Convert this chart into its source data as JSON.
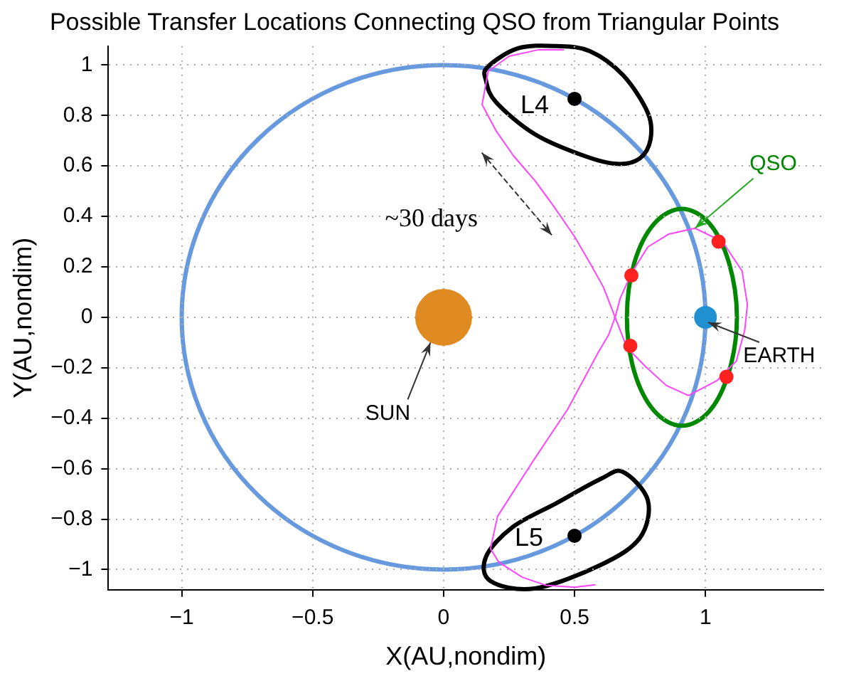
{
  "chart_data": {
    "type": "line",
    "title": "Possible Transfer Locations Connecting QSO from Triangular Points",
    "xlabel": "X(AU,nondim)",
    "ylabel": "Y(AU,nondim)",
    "xlim": [
      -1.28,
      1.45
    ],
    "ylim": [
      -1.08,
      1.075
    ],
    "xticks": [
      {
        "value": -1,
        "label": "−1"
      },
      {
        "value": -0.5,
        "label": "−0.5"
      },
      0,
      0.5,
      1
    ],
    "yticks": [
      {
        "value": -1,
        "label": "−1"
      },
      {
        "value": -0.8,
        "label": "−0.8"
      },
      {
        "value": -0.6,
        "label": "−0.6"
      },
      {
        "value": -0.4,
        "label": "−0.4"
      },
      {
        "value": -0.2,
        "label": "−0.2"
      },
      0,
      0.2,
      0.4,
      0.6,
      0.8,
      1
    ],
    "grid": true,
    "legend": false,
    "line_style": "solid",
    "series": [
      {
        "color": "#ff44ff",
        "x": [
          0.46,
          0.36,
          0.25,
          0.17,
          0.147,
          0.2,
          0.267,
          0.35,
          0.422,
          0.5,
          0.559,
          0.61,
          0.655,
          0.7,
          0.77,
          0.85,
          0.935,
          1.045,
          1.118,
          1.15,
          1.16,
          1.14,
          1.065,
          0.96,
          0.86,
          0.78,
          0.72,
          0.675,
          0.655,
          0.63,
          0.59,
          0.474,
          0.337,
          0.206,
          0.179,
          0.21,
          0.3,
          0.39,
          0.5,
          0.58
        ],
        "values": [
          1.06,
          1.06,
          1.035,
          0.975,
          0.843,
          0.74,
          0.64,
          0.54,
          0.438,
          0.32,
          0.215,
          0.12,
          0,
          -0.12,
          -0.194,
          -0.27,
          -0.31,
          -0.25,
          -0.173,
          -0.05,
          0.05,
          0.183,
          0.3,
          0.353,
          0.33,
          0.279,
          0.18,
          0.077,
          0,
          -0.07,
          -0.14,
          -0.364,
          -0.577,
          -0.789,
          -0.917,
          -0.97,
          -1.03,
          -1.062,
          -1.07,
          -1.06
        ]
      },
      {
        "type": "bubble",
        "x": [
          0,
          1
        ],
        "values": [
          0,
          0
        ],
        "sizes": [
          1,
          0.16
        ],
        "colors": [
          "#e08a22",
          "#2090d0"
        ]
      },
      {
        "type": "scatter",
        "marker": "circle",
        "color": "#ff2020",
        "x": [
          0.717,
          1.05,
          0.713,
          1.08
        ],
        "values": [
          0.166,
          0.3,
          -0.113,
          -0.236
        ]
      },
      {
        "type": "scatter",
        "marker": "circle",
        "color": "#000000",
        "x": [
          0.5,
          0.5
        ],
        "values": [
          0.866,
          -0.866
        ]
      }
    ],
    "annotations": [
      {
        "text": "~30 days",
        "x": 0.35,
        "y": 0.54
      },
      {
        "text": "QSO",
        "x": 0.96,
        "y": 0.353
      },
      {
        "text": "EARTH",
        "x": 1.01,
        "y": -0.02
      },
      {
        "text": "SUN",
        "x": -0.05,
        "y": -0.1
      },
      {
        "text": "L4",
        "x": 0.5,
        "y": 0.866
      },
      {
        "text": "L5",
        "x": 0.5,
        "y": -0.866
      }
    ]
  }
}
